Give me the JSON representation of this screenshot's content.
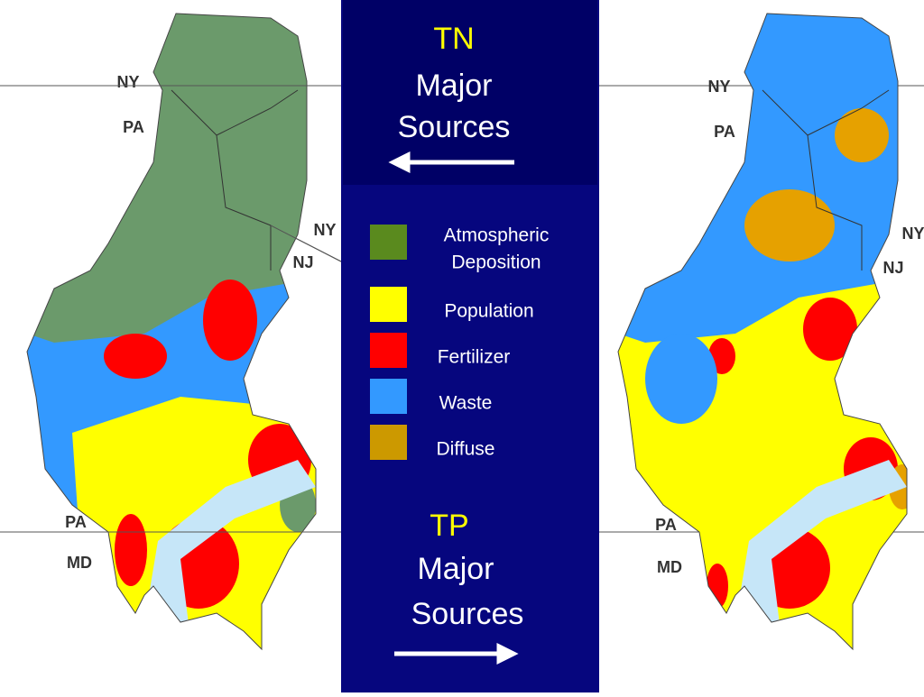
{
  "maps": [
    {
      "labels": [
        "NY",
        "PA",
        "NY",
        "NJ",
        "PA",
        "MD"
      ]
    },
    {
      "labels": [
        "NY",
        "PA",
        "NY",
        "NJ",
        "PA",
        "MD"
      ]
    }
  ],
  "tn": {
    "title": "TN",
    "line1": "Major",
    "line2": "Sources"
  },
  "legend": [
    {
      "lines": [
        "Atmospheric",
        "Deposition"
      ],
      "color": "#5a8a1e"
    },
    {
      "lines": [
        "Population"
      ],
      "color": "#ffff00"
    },
    {
      "lines": [
        "Fertilizer"
      ],
      "color": "#ff0000"
    },
    {
      "lines": [
        "Waste"
      ],
      "color": "#3399ff"
    },
    {
      "lines": [
        "Diffuse"
      ],
      "color": "#cc9900"
    }
  ],
  "tp": {
    "title": "TP",
    "line1": "Major",
    "line2": "Sources"
  }
}
